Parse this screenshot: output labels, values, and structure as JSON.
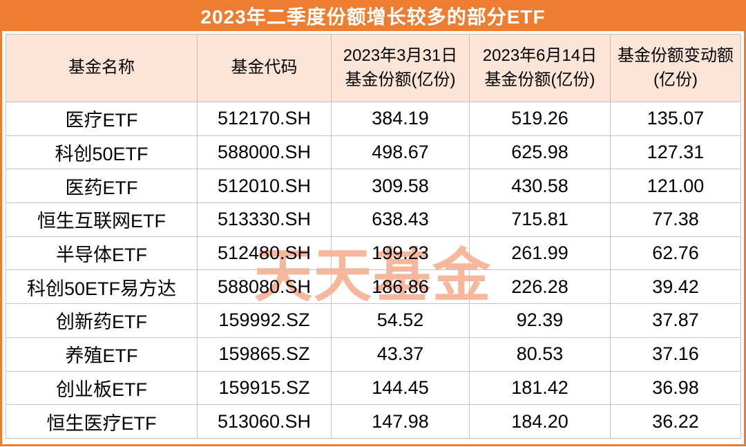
{
  "title": "2023年二季度份额增长较多的部分ETF",
  "watermark": "天天基金",
  "colors": {
    "accent_orange": "#ED7D31",
    "header_bg": "#FCE4D6",
    "watermark_color": "#F6B79C",
    "grid_line": "#C2C2C2",
    "title_text": "#FFFFFF",
    "body_text": "#000000"
  },
  "chart_data": {
    "type": "table",
    "title": "2023年二季度份额增长较多的部分ETF",
    "columns": [
      "基金名称",
      "基金代码",
      "2023年3月31日基金份额(亿份)",
      "2023年6月14日基金份额(亿份)",
      "基金份额变动额(亿份)"
    ],
    "rows": [
      [
        "医疗ETF",
        "512170.SH",
        "384.19",
        "519.26",
        "135.07"
      ],
      [
        "科创50ETF",
        "588000.SH",
        "498.67",
        "625.98",
        "127.31"
      ],
      [
        "医药ETF",
        "512010.SH",
        "309.58",
        "430.58",
        "121.00"
      ],
      [
        "恒生互联网ETF",
        "513330.SH",
        "638.43",
        "715.81",
        "77.38"
      ],
      [
        "半导体ETF",
        "512480.SH",
        "199.23",
        "261.99",
        "62.76"
      ],
      [
        "科创50ETF易方达",
        "588080.SH",
        "186.86",
        "226.28",
        "39.42"
      ],
      [
        "创新药ETF",
        "159992.SZ",
        "54.52",
        "92.39",
        "37.87"
      ],
      [
        "养殖ETF",
        "159865.SZ",
        "43.37",
        "80.53",
        "37.16"
      ],
      [
        "创业板ETF",
        "159915.SZ",
        "144.45",
        "181.42",
        "36.98"
      ],
      [
        "恒生医疗ETF",
        "513060.SH",
        "147.98",
        "184.20",
        "36.22"
      ]
    ]
  }
}
